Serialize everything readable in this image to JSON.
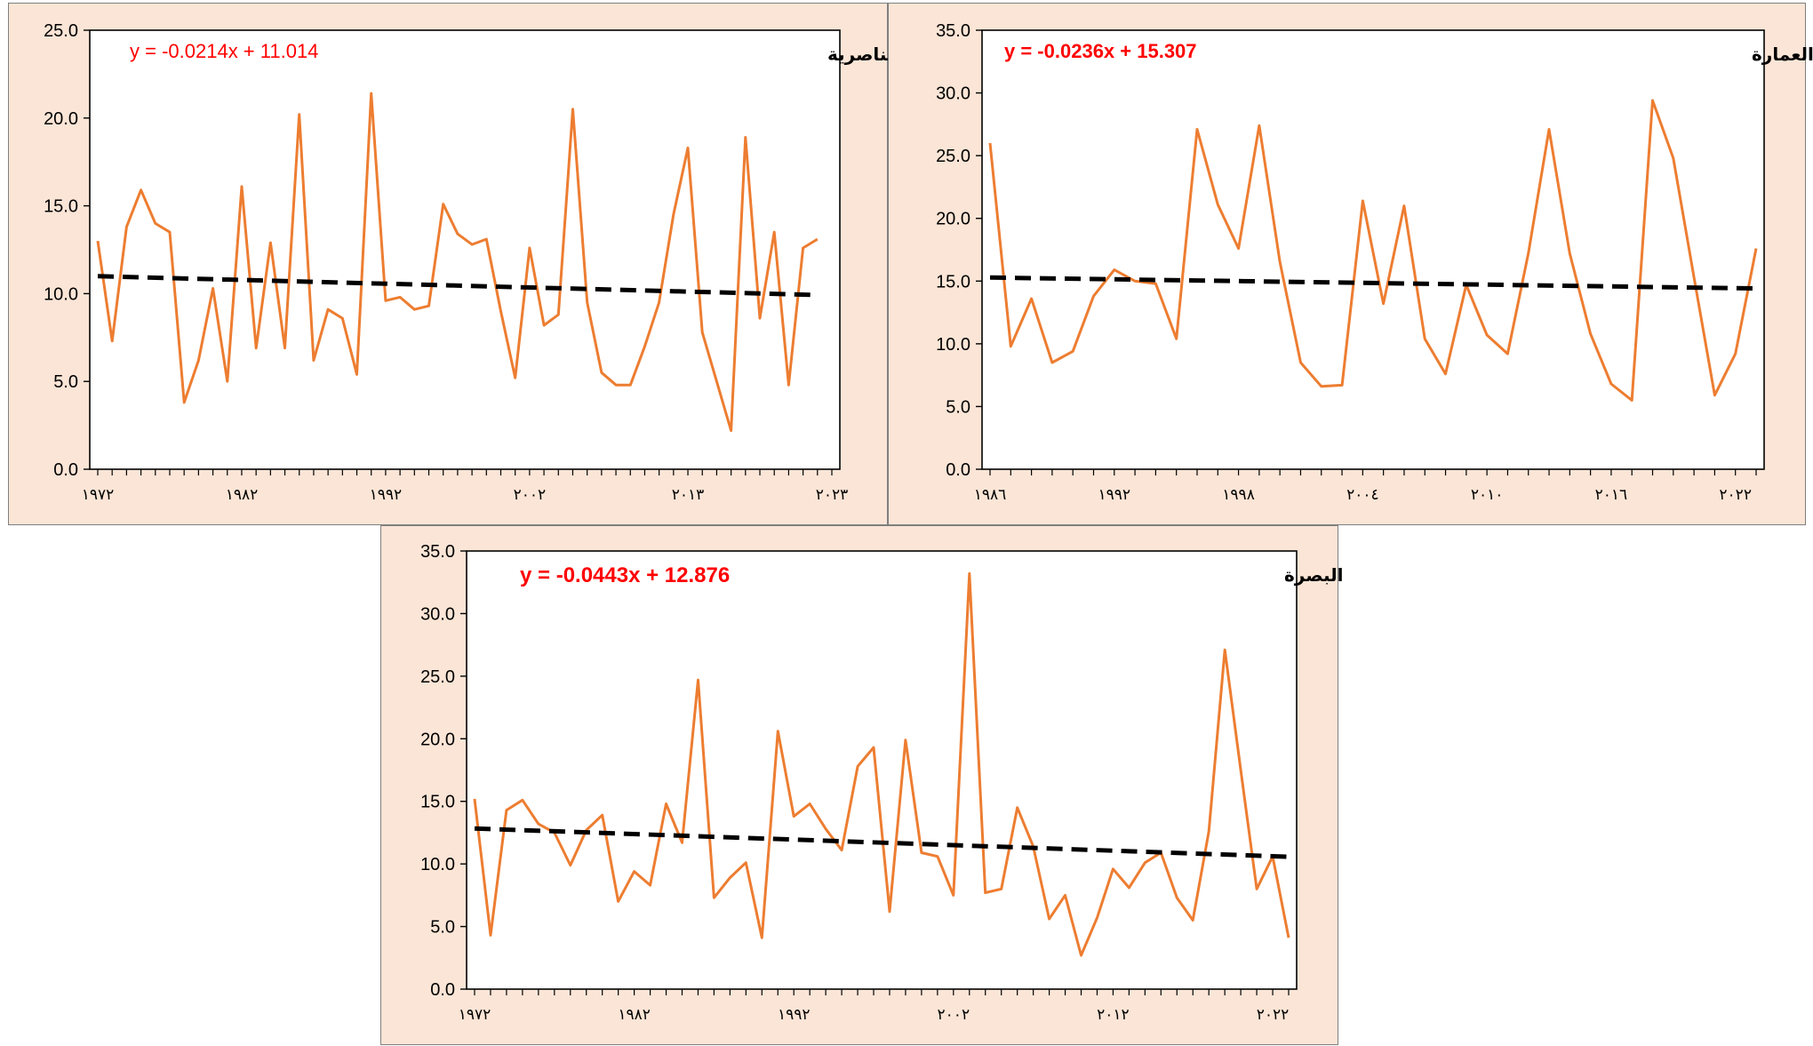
{
  "colors": {
    "panel_background": "#fbe5d6",
    "series": "#ed7d31",
    "trendline": "#000000",
    "equation": "#ff0000"
  },
  "chart_data": [
    {
      "id": "nasiriyah",
      "type": "line",
      "title": "الناصرية",
      "equation": "y = -0.0214x + 11.014",
      "equation_bold": false,
      "xlabel": "",
      "ylabel": "",
      "ylim": [
        0,
        25
      ],
      "y_ticks": [
        "0.0",
        "5.0",
        "10.0",
        "15.0",
        "20.0",
        "25.0"
      ],
      "x_tick_labels": [
        "١٩٧٢",
        "١٩٨٢",
        "١٩٩٢",
        "٢٠٠٢",
        "٢٠١٣",
        "٢٠٢٣"
      ],
      "x_start": 1972,
      "x_end": 2023,
      "series": [
        {
          "values": [
            13.0,
            7.3,
            13.8,
            15.9,
            14.0,
            13.5,
            3.8,
            6.2,
            10.3,
            5.0,
            16.1,
            6.9,
            12.9,
            6.9,
            20.2,
            6.2,
            9.1,
            8.6,
            5.4,
            21.4,
            9.6,
            9.8,
            9.1,
            9.3,
            15.1,
            13.4,
            12.8,
            13.1,
            9.0,
            5.2,
            12.6,
            8.2,
            8.8,
            20.5,
            9.5,
            5.5,
            4.8,
            4.8,
            7.0,
            9.5,
            14.5,
            18.3,
            7.8,
            5.0,
            2.2,
            18.9,
            8.6,
            13.5,
            4.8,
            12.6,
            13.1
          ]
        }
      ],
      "trendline": {
        "slope": -0.0214,
        "intercept": 11.014
      }
    },
    {
      "id": "amarah",
      "type": "line",
      "title": "العمارة",
      "equation": "y = -0.0236x + 15.307",
      "equation_bold": true,
      "xlabel": "",
      "ylabel": "",
      "ylim": [
        0,
        35
      ],
      "y_ticks": [
        "0.0",
        "5.0",
        "10.0",
        "15.0",
        "20.0",
        "25.0",
        "30.0",
        "35.0"
      ],
      "x_tick_labels": [
        "١٩٨٦",
        "١٩٩٢",
        "١٩٩٨",
        "٢٠٠٤",
        "٢٠١٠",
        "٢٠١٦",
        "٢٠٢٢"
      ],
      "x_start": 1986,
      "x_end": 2023,
      "series": [
        {
          "values": [
            26.0,
            9.8,
            13.6,
            8.5,
            9.4,
            13.8,
            15.9,
            15.0,
            14.8,
            10.4,
            27.1,
            21.1,
            17.6,
            27.4,
            16.5,
            8.5,
            6.6,
            6.7,
            21.4,
            13.2,
            21.0,
            10.4,
            7.6,
            14.7,
            10.7,
            9.2,
            17.2,
            27.1,
            17.2,
            10.8,
            6.8,
            5.5,
            29.4,
            24.8,
            15.3,
            5.9,
            9.2,
            17.6
          ]
        }
      ],
      "trendline": {
        "slope": -0.0236,
        "intercept": 15.307
      }
    },
    {
      "id": "basrah",
      "type": "line",
      "title": "البصرة",
      "equation": "y = -0.0443x + 12.876",
      "equation_bold": true,
      "xlabel": "",
      "ylabel": "",
      "ylim": [
        0,
        35
      ],
      "y_ticks": [
        "0.0",
        "5.0",
        "10.0",
        "15.0",
        "20.0",
        "25.0",
        "30.0",
        "35.0"
      ],
      "x_tick_labels": [
        "١٩٧٢",
        "١٩٨٢",
        "١٩٩٢",
        "٢٠٠٢",
        "٢٠١٢",
        "٢٠٢٢"
      ],
      "x_start": 1972,
      "x_end": 2023,
      "series": [
        {
          "values": [
            15.2,
            4.3,
            14.3,
            15.1,
            13.2,
            12.5,
            9.9,
            12.7,
            13.9,
            7.0,
            9.4,
            8.3,
            14.8,
            11.7,
            24.7,
            7.3,
            8.9,
            10.1,
            4.1,
            20.6,
            13.8,
            14.8,
            12.8,
            11.1,
            17.8,
            19.3,
            6.2,
            19.9,
            10.9,
            10.6,
            7.5,
            33.2,
            7.7,
            8.0,
            14.5,
            11.4,
            5.6,
            7.5,
            2.7,
            5.7,
            9.6,
            8.1,
            10.1,
            10.9,
            7.3,
            5.5,
            12.6,
            27.1,
            17.5,
            8.0,
            10.6,
            4.1
          ]
        }
      ],
      "trendline": {
        "slope": -0.0443,
        "intercept": 12.876
      }
    }
  ]
}
